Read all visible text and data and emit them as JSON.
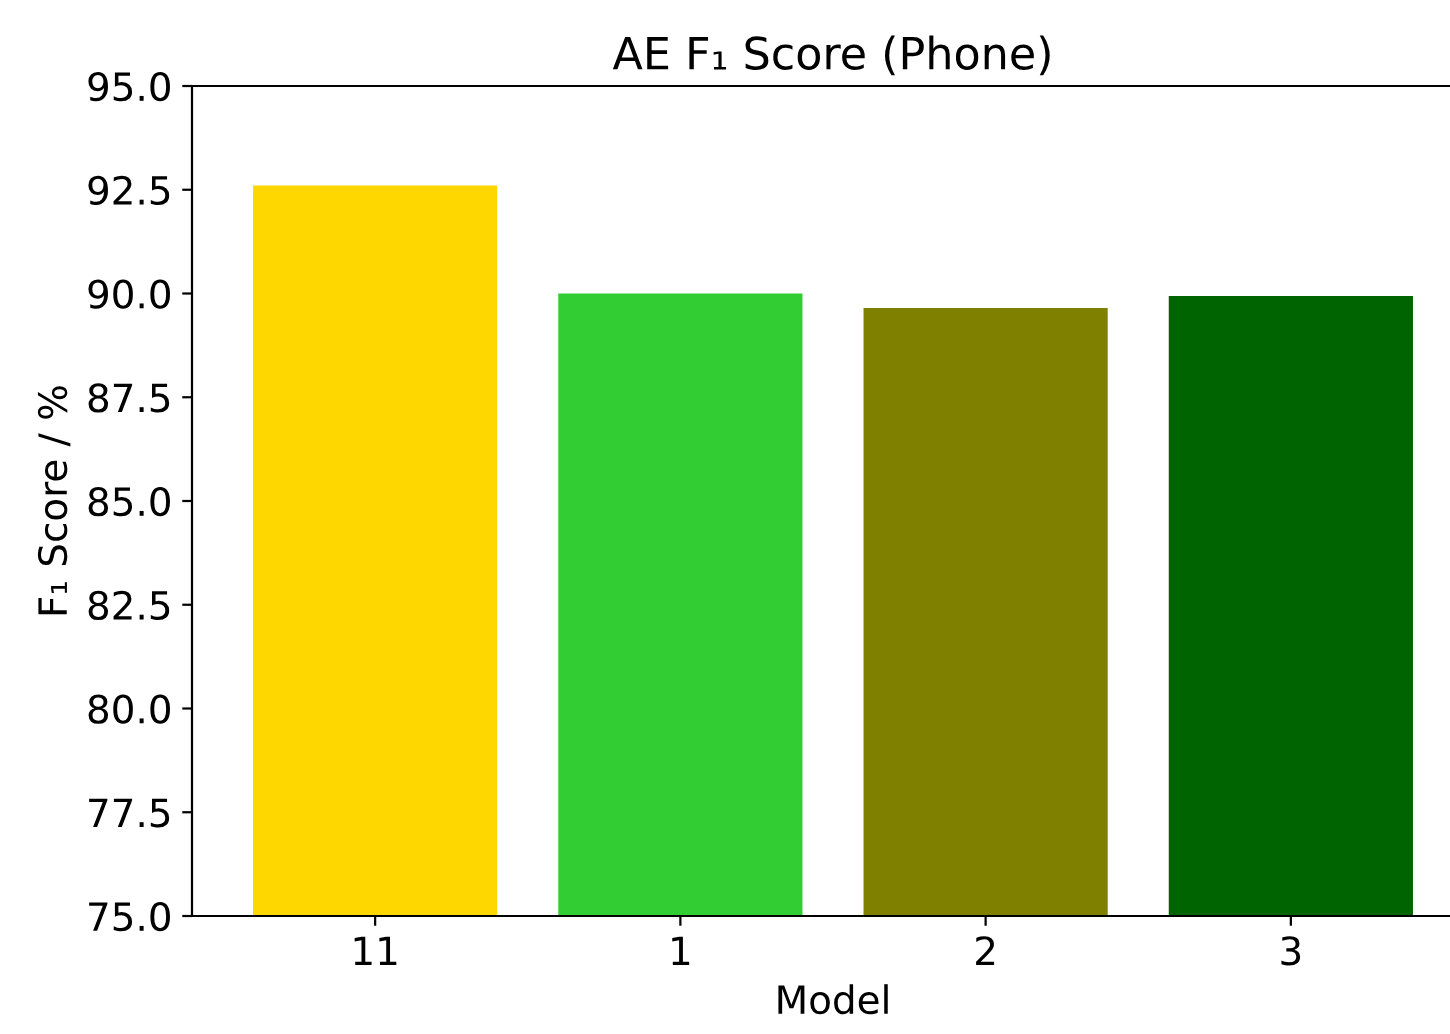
{
  "chart_data": {
    "type": "bar",
    "title": "AE F₁ Score (Phone)",
    "xlabel": "Model",
    "ylabel": "F₁ Score / %",
    "categories": [
      "11",
      "1",
      "2",
      "3"
    ],
    "values": [
      92.6,
      90.0,
      89.65,
      89.94
    ],
    "colors": [
      "#ffd700",
      "#32cd32",
      "#808000",
      "#006400"
    ],
    "ylim": [
      75,
      95
    ],
    "yticks": [
      {
        "value": 75,
        "label": "75.0"
      },
      {
        "value": 77.5,
        "label": "77.5"
      },
      {
        "value": 80,
        "label": "80.0"
      },
      {
        "value": 82.5,
        "label": "82.5"
      },
      {
        "value": 85,
        "label": "85.0"
      },
      {
        "value": 87.5,
        "label": "87.5"
      },
      {
        "value": 90,
        "label": "90.0"
      },
      {
        "value": 92.5,
        "label": "92.5"
      },
      {
        "value": 95,
        "label": "95.0"
      }
    ],
    "grid": false,
    "legend": false
  }
}
